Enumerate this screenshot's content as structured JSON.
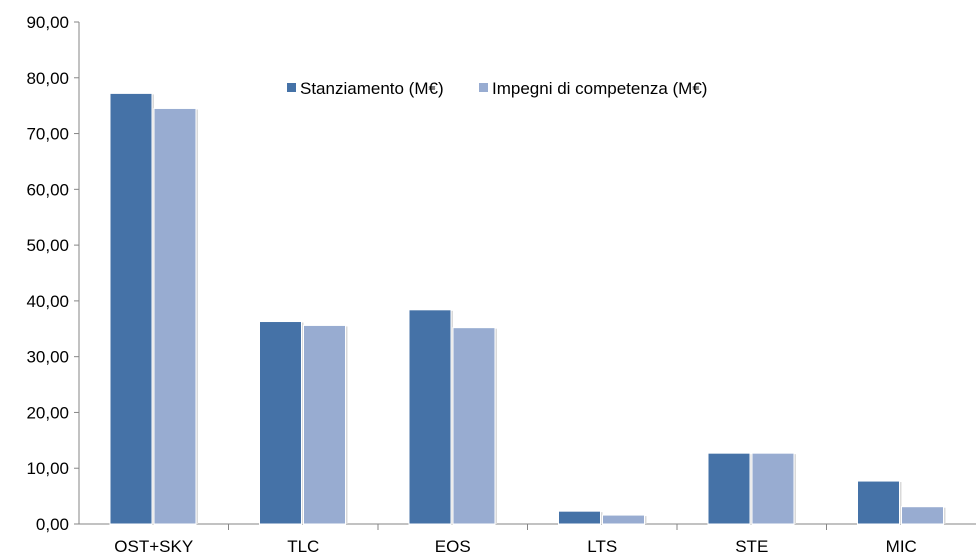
{
  "chart_data": {
    "type": "bar",
    "categories": [
      "OST+SKY",
      "TLC",
      "EOS",
      "LTS",
      "STE",
      "MIC"
    ],
    "series": [
      {
        "name": "Stanziamento (M€)",
        "color": "#4572A7",
        "values": [
          77.2,
          36.3,
          38.4,
          2.3,
          12.7,
          7.7
        ]
      },
      {
        "name": "Impegni di competenza (M€)",
        "color": "#98ACD1",
        "values": [
          74.5,
          35.6,
          35.2,
          1.6,
          12.7,
          3.1
        ]
      }
    ],
    "ylim": [
      0,
      90
    ],
    "yticks": [
      "0,00",
      "10,00",
      "20,00",
      "30,00",
      "40,00",
      "50,00",
      "60,00",
      "70,00",
      "80,00",
      "90,00"
    ],
    "legend_position": "top-center",
    "grid": false
  }
}
